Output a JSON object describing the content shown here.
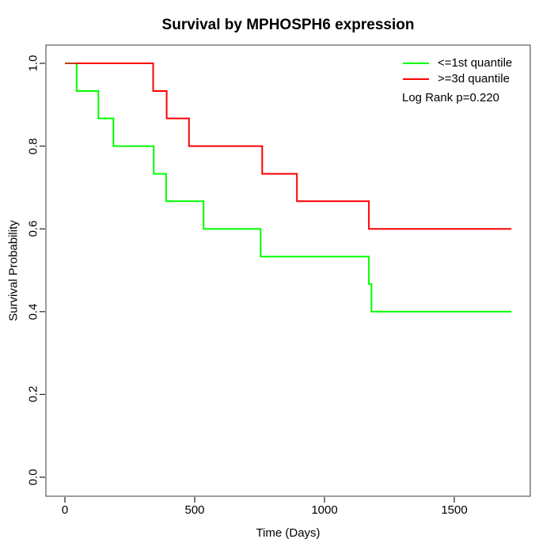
{
  "chart_data": {
    "type": "line",
    "subtype": "kaplan-meier-step",
    "title": "Survival by MPHOSPH6 expression",
    "xlabel": "Time (Days)",
    "ylabel": "Survival Probability",
    "annotation": "Log Rank p=0.220",
    "legend_position": "top-right",
    "grid": false,
    "xlim": [
      0,
      1750
    ],
    "ylim": [
      0.0,
      1.0
    ],
    "x_ticks": [
      0,
      500,
      1000,
      1500
    ],
    "y_ticks": [
      0.0,
      0.2,
      0.4,
      0.6,
      0.8,
      1.0
    ],
    "x_tick_labels": [
      "0",
      "500",
      "1000",
      "1500"
    ],
    "y_tick_labels": [
      "0.0",
      "0.2",
      "0.4",
      "0.6",
      "0.8",
      "1.0"
    ],
    "series": [
      {
        "name": "<=1st quantile",
        "color": "#00ff00",
        "steps": [
          [
            0,
            1.0
          ],
          [
            45,
            0.933
          ],
          [
            129,
            0.867
          ],
          [
            187,
            0.8
          ],
          [
            342,
            0.733
          ],
          [
            390,
            0.667
          ],
          [
            534,
            0.6
          ],
          [
            754,
            0.533
          ],
          [
            1171,
            0.467
          ],
          [
            1181,
            0.4
          ]
        ],
        "end_x": 1720
      },
      {
        "name": ">=3d quantile",
        "color": "#ff0000",
        "steps": [
          [
            0,
            1.0
          ],
          [
            340,
            0.933
          ],
          [
            392,
            0.867
          ],
          [
            478,
            0.8
          ],
          [
            760,
            0.733
          ],
          [
            894,
            0.667
          ],
          [
            1171,
            0.6
          ]
        ],
        "end_x": 1720
      }
    ],
    "overlap_segment": {
      "from": 0,
      "to": 45,
      "survival": 1.0,
      "color": "#bf3e0a"
    }
  },
  "legend": {
    "items": [
      {
        "label": "<=1st quantile",
        "color": "#00ff00"
      },
      {
        "label": ">=3d quantile",
        "color": "#ff0000"
      }
    ]
  }
}
